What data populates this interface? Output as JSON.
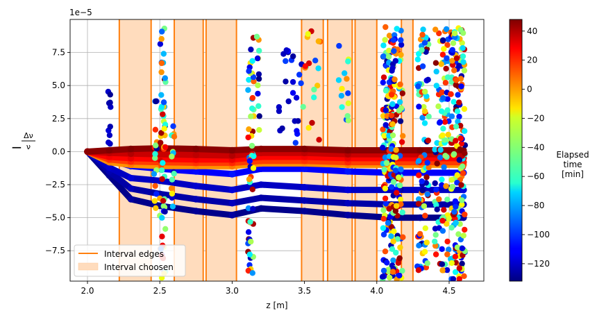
{
  "chart_data": {
    "type": "scatter",
    "xlabel": "z [m]",
    "ylabel": "−Δν/ν",
    "ylabel_parts": {
      "minus": "−",
      "num": "Δν",
      "den": "ν"
    },
    "offset_label": "1e−5",
    "xlim": [
      1.88,
      4.74
    ],
    "ylim": [
      -9.8,
      10.0
    ],
    "xticks": [
      2.0,
      2.5,
      3.0,
      3.5,
      4.0,
      4.5
    ],
    "xtick_labels": [
      "2.0",
      "2.5",
      "3.0",
      "3.5",
      "4.0",
      "4.5"
    ],
    "yticks": [
      -7.5,
      -5.0,
      -2.5,
      0.0,
      2.5,
      5.0,
      7.5
    ],
    "ytick_labels": [
      "−7.5",
      "−5.0",
      "−2.5",
      "0.0",
      "2.5",
      "5.0",
      "7.5"
    ],
    "grid": true,
    "intervals": [
      [
        2.22,
        2.44
      ],
      [
        2.6,
        2.8
      ],
      [
        2.82,
        3.03
      ],
      [
        3.48,
        3.63
      ],
      [
        3.66,
        3.83
      ],
      [
        3.85,
        4.0
      ],
      [
        4.17,
        4.25
      ]
    ],
    "edges_color": "#ff7f0e",
    "fill_color": "#ffdcbd",
    "legend": {
      "position": "lower-left",
      "entries": [
        {
          "label": "Interval edges",
          "kind": "line"
        },
        {
          "label": "Interval choosen",
          "kind": "patch"
        }
      ]
    },
    "colorbar": {
      "label_lines": [
        "Elapsed",
        "time",
        "[min]"
      ],
      "range": [
        -132,
        48
      ],
      "ticks": [
        40,
        20,
        0,
        -20,
        -40,
        -60,
        -80,
        -100,
        -120
      ],
      "tick_labels": [
        "40",
        "20",
        "0",
        "−20",
        "−40",
        "−60",
        "−80",
        "−100",
        "−120"
      ],
      "colormap": "jet"
    },
    "bands": [
      {
        "name": "band-0",
        "time": 46,
        "points": [
          [
            2.0,
            0
          ],
          [
            2.15,
            0.1
          ],
          [
            2.3,
            0.2
          ],
          [
            2.5,
            0.25
          ],
          [
            2.75,
            0.2
          ],
          [
            3.0,
            0.1
          ],
          [
            3.2,
            0.2
          ],
          [
            3.5,
            0.2
          ],
          [
            3.8,
            0.1
          ],
          [
            4.1,
            0.1
          ],
          [
            4.3,
            0.1
          ],
          [
            4.6,
            0.1
          ]
        ]
      },
      {
        "name": "band-1",
        "time": 35,
        "points": [
          [
            2.0,
            0
          ],
          [
            2.15,
            -0.1
          ],
          [
            2.3,
            -0.15
          ],
          [
            2.5,
            -0.2
          ],
          [
            2.75,
            -0.25
          ],
          [
            3.0,
            -0.3
          ],
          [
            3.2,
            -0.1
          ],
          [
            3.5,
            -0.1
          ],
          [
            3.8,
            -0.2
          ],
          [
            4.1,
            -0.2
          ],
          [
            4.3,
            -0.2
          ],
          [
            4.6,
            -0.2
          ]
        ]
      },
      {
        "name": "band-2",
        "time": 25,
        "points": [
          [
            2.0,
            0
          ],
          [
            2.15,
            -0.4
          ],
          [
            2.3,
            -0.5
          ],
          [
            2.5,
            -0.55
          ],
          [
            2.75,
            -0.6
          ],
          [
            3.0,
            -0.6
          ],
          [
            3.2,
            -0.4
          ],
          [
            3.5,
            -0.4
          ],
          [
            3.8,
            -0.5
          ],
          [
            4.1,
            -0.5
          ],
          [
            4.3,
            -0.5
          ],
          [
            4.6,
            -0.5
          ]
        ]
      },
      {
        "name": "band-3",
        "time": 15,
        "points": [
          [
            2.0,
            0
          ],
          [
            2.15,
            -0.6
          ],
          [
            2.3,
            -0.75
          ],
          [
            2.5,
            -0.8
          ],
          [
            2.75,
            -0.85
          ],
          [
            3.0,
            -0.85
          ],
          [
            3.2,
            -0.7
          ],
          [
            3.5,
            -0.7
          ],
          [
            3.8,
            -0.8
          ],
          [
            4.1,
            -0.8
          ],
          [
            4.3,
            -0.8
          ],
          [
            4.6,
            -0.8
          ]
        ]
      },
      {
        "name": "band-4",
        "time": 0,
        "points": [
          [
            2.0,
            0
          ],
          [
            2.15,
            -0.8
          ],
          [
            2.3,
            -1.0
          ],
          [
            2.5,
            -1.1
          ],
          [
            2.75,
            -1.1
          ],
          [
            3.0,
            -1.1
          ],
          [
            3.2,
            -0.9
          ],
          [
            3.5,
            -0.9
          ],
          [
            3.8,
            -1.0
          ],
          [
            4.1,
            -1.0
          ],
          [
            4.3,
            -1.0
          ],
          [
            4.6,
            -1.0
          ]
        ]
      },
      {
        "name": "band-5",
        "time": -110,
        "points": [
          [
            2.0,
            0
          ],
          [
            2.15,
            -0.6
          ],
          [
            2.3,
            -1.1
          ],
          [
            2.5,
            -1.3
          ],
          [
            2.75,
            -1.5
          ],
          [
            3.0,
            -1.7
          ],
          [
            3.2,
            -1.3
          ],
          [
            3.5,
            -1.3
          ],
          [
            3.8,
            -1.5
          ],
          [
            4.1,
            -1.6
          ],
          [
            4.3,
            -1.6
          ],
          [
            4.6,
            -1.6
          ]
        ]
      },
      {
        "name": "band-6",
        "time": -120,
        "points": [
          [
            2.0,
            0
          ],
          [
            2.15,
            -1.2
          ],
          [
            2.3,
            -2.0
          ],
          [
            2.5,
            -2.2
          ],
          [
            2.75,
            -2.6
          ],
          [
            3.0,
            -2.9
          ],
          [
            3.2,
            -2.5
          ],
          [
            3.5,
            -2.7
          ],
          [
            3.8,
            -2.9
          ],
          [
            4.1,
            -2.9
          ],
          [
            4.3,
            -2.9
          ],
          [
            4.6,
            -2.9
          ]
        ]
      },
      {
        "name": "band-7",
        "time": -125,
        "points": [
          [
            2.0,
            0
          ],
          [
            2.15,
            -1.5
          ],
          [
            2.3,
            -2.8
          ],
          [
            2.5,
            -3.2
          ],
          [
            2.75,
            -3.6
          ],
          [
            3.0,
            -3.9
          ],
          [
            3.2,
            -3.5
          ],
          [
            3.5,
            -3.7
          ],
          [
            3.8,
            -3.9
          ],
          [
            4.1,
            -4.0
          ],
          [
            4.3,
            -4.0
          ],
          [
            4.6,
            -4.0
          ]
        ]
      },
      {
        "name": "band-8",
        "time": -130,
        "points": [
          [
            2.0,
            0
          ],
          [
            2.15,
            -1.8
          ],
          [
            2.3,
            -3.6
          ],
          [
            2.5,
            -4.1
          ],
          [
            2.75,
            -4.5
          ],
          [
            3.0,
            -4.8
          ],
          [
            3.2,
            -4.3
          ],
          [
            3.5,
            -4.5
          ],
          [
            3.8,
            -4.8
          ],
          [
            4.1,
            -5.0
          ],
          [
            4.3,
            -5.0
          ],
          [
            4.6,
            -5.0
          ]
        ]
      }
    ],
    "scatter_columns": [
      {
        "x": 2.15,
        "spread": 0.01,
        "ymin": -0.5,
        "ymax": 5.2,
        "n": 10,
        "tmin": -130,
        "tmax": -115
      },
      {
        "x": 2.47,
        "spread": 0.01,
        "ymin": -5.5,
        "ymax": 7.8,
        "n": 16,
        "tmin": -132,
        "tmax": 45
      },
      {
        "x": 2.52,
        "spread": 0.02,
        "ymin": -9.7,
        "ymax": 9.4,
        "n": 60,
        "tmin": -132,
        "tmax": 48
      },
      {
        "x": 2.59,
        "spread": 0.01,
        "ymin": -4.6,
        "ymax": 2.6,
        "n": 14,
        "tmin": -132,
        "tmax": 40
      },
      {
        "x": 3.13,
        "spread": 0.02,
        "ymin": -9.5,
        "ymax": 9.3,
        "n": 55,
        "tmin": -132,
        "tmax": 48
      },
      {
        "x": 3.18,
        "spread": 0.01,
        "ymin": 1.5,
        "ymax": 9.0,
        "n": 12,
        "tmin": -132,
        "tmax": 40
      },
      {
        "x": 3.4,
        "spread": 0.08,
        "ymin": 0.5,
        "ymax": 8.5,
        "n": 24,
        "tmin": -132,
        "tmax": -95
      },
      {
        "x": 3.55,
        "spread": 0.06,
        "ymin": 0.8,
        "ymax": 9.2,
        "n": 18,
        "tmin": -132,
        "tmax": 40
      },
      {
        "x": 3.77,
        "spread": 0.04,
        "ymin": 2.0,
        "ymax": 8.5,
        "n": 14,
        "tmin": -132,
        "tmax": 5
      },
      {
        "x": 4.08,
        "spread": 0.04,
        "ymin": -9.7,
        "ymax": 9.5,
        "n": 140,
        "tmin": -132,
        "tmax": 48
      },
      {
        "x": 4.14,
        "spread": 0.04,
        "ymin": -9.7,
        "ymax": 9.5,
        "n": 110,
        "tmin": -132,
        "tmax": 48
      },
      {
        "x": 4.32,
        "spread": 0.04,
        "ymin": -9.0,
        "ymax": 9.5,
        "n": 90,
        "tmin": -132,
        "tmax": 48
      },
      {
        "x": 4.45,
        "spread": 0.05,
        "ymin": -9.3,
        "ymax": 9.5,
        "n": 100,
        "tmin": -132,
        "tmax": 48
      },
      {
        "x": 4.56,
        "spread": 0.05,
        "ymin": -9.7,
        "ymax": 9.5,
        "n": 170,
        "tmin": -132,
        "tmax": 48
      }
    ]
  }
}
